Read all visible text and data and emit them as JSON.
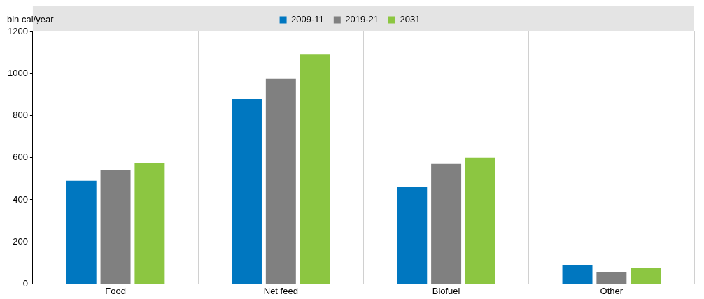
{
  "chart_data": {
    "type": "bar",
    "ylabel": "bln cal/year",
    "categories": [
      "Food",
      "Net feed",
      "Biofuel",
      "Other"
    ],
    "series": [
      {
        "name": "2009-11",
        "color": "#0077c0",
        "values": [
          490,
          880,
          460,
          90
        ]
      },
      {
        "name": "2019-21",
        "color": "#808080",
        "values": [
          540,
          975,
          570,
          55
        ]
      },
      {
        "name": "2031",
        "color": "#8cc641",
        "values": [
          575,
          1090,
          600,
          77
        ]
      }
    ],
    "ylim": [
      0,
      1200
    ],
    "yticks": [
      0,
      200,
      400,
      600,
      800,
      1000,
      1200
    ],
    "grid": "x",
    "legend": "top"
  }
}
